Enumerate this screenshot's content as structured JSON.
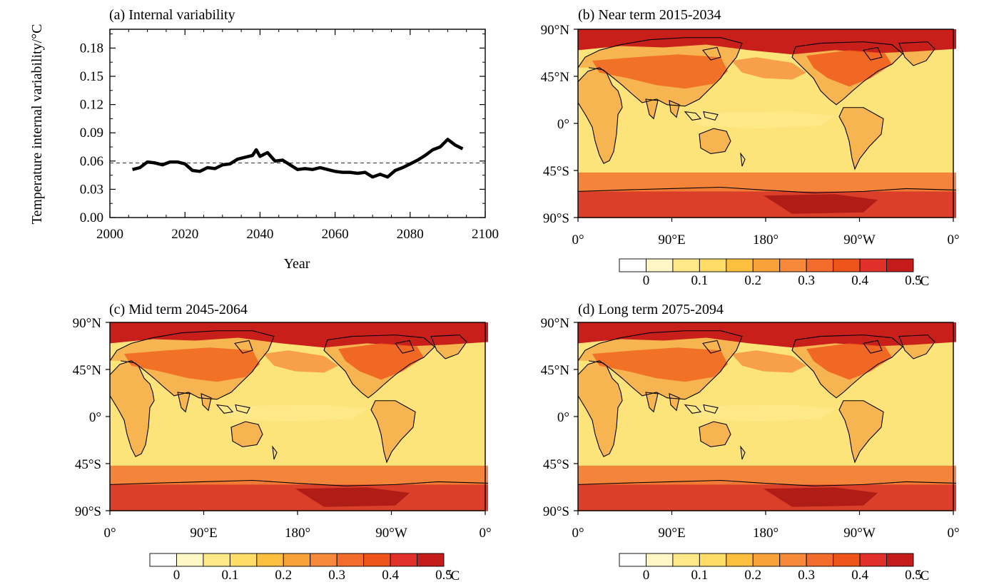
{
  "colors": {
    "ocean_base": "#fde47a",
    "land_base": "#f6c35a",
    "line": "#000000",
    "ref_line": "#333333"
  },
  "colorbar": {
    "colors": [
      "#ffffff",
      "#fff6c6",
      "#ffe888",
      "#ffdd66",
      "#fcc03e",
      "#f9a23a",
      "#f7893a",
      "#f36c2c",
      "#ee5419",
      "#e1302a",
      "#c41c1a"
    ],
    "labels": [
      "0",
      "0.1",
      "0.2",
      "0.3",
      "0.4",
      "0.5"
    ],
    "unit": "°C"
  },
  "map_ticks": {
    "lon": [
      "0°",
      "90°E",
      "180°",
      "90°W",
      "0°"
    ],
    "lat": [
      "90°N",
      "45°N",
      "0°",
      "45°S",
      "90°S"
    ]
  },
  "panels": {
    "a": {
      "title": "(a) Internal variability"
    },
    "b": {
      "title": "(b) Near term 2015-2034"
    },
    "c": {
      "title": "(c) Mid term 2045-2064"
    },
    "d": {
      "title": "(d) Long term 2075-2094"
    }
  },
  "chart_data": [
    {
      "type": "line",
      "panel": "a",
      "title": "(a) Internal variability",
      "xlabel": "Year",
      "ylabel": "Temperature internal variability/°C",
      "xlim": [
        2000,
        2100
      ],
      "ylim": [
        0.0,
        0.2
      ],
      "xticks": [
        "2000",
        "2020",
        "2040",
        "2060",
        "2080",
        "2100"
      ],
      "yticks": [
        "0.00",
        "0.03",
        "0.06",
        "0.09",
        "0.12",
        "0.15",
        "0.18"
      ],
      "reference_line": {
        "y": 0.058,
        "style": "dashed"
      },
      "x": [
        2006,
        2008,
        2010,
        2012,
        2014,
        2016,
        2018,
        2020,
        2022,
        2024,
        2026,
        2028,
        2030,
        2032,
        2034,
        2036,
        2038,
        2039,
        2040,
        2042,
        2044,
        2046,
        2048,
        2050,
        2052,
        2054,
        2056,
        2058,
        2060,
        2062,
        2064,
        2066,
        2068,
        2070,
        2072,
        2074,
        2076,
        2078,
        2080,
        2082,
        2084,
        2086,
        2088,
        2090,
        2092,
        2094
      ],
      "y": [
        0.051,
        0.053,
        0.059,
        0.058,
        0.056,
        0.059,
        0.059,
        0.057,
        0.05,
        0.049,
        0.053,
        0.052,
        0.056,
        0.057,
        0.062,
        0.064,
        0.066,
        0.072,
        0.065,
        0.069,
        0.06,
        0.061,
        0.056,
        0.051,
        0.052,
        0.051,
        0.053,
        0.051,
        0.049,
        0.048,
        0.048,
        0.047,
        0.048,
        0.043,
        0.046,
        0.043,
        0.05,
        0.053,
        0.057,
        0.061,
        0.066,
        0.072,
        0.075,
        0.083,
        0.077,
        0.073
      ]
    },
    {
      "type": "heatmap",
      "panel": "b",
      "title": "(b) Near term 2015-2034",
      "xlim": [
        0,
        360
      ],
      "ylim": [
        -90,
        90
      ],
      "units": "°C",
      "levels": [
        0,
        0.05,
        0.1,
        0.15,
        0.2,
        0.25,
        0.3,
        0.35,
        0.4,
        0.45,
        0.5,
        0.55
      ]
    },
    {
      "type": "heatmap",
      "panel": "c",
      "title": "(c) Mid term 2045-2064",
      "xlim": [
        0,
        360
      ],
      "ylim": [
        -90,
        90
      ],
      "units": "°C",
      "levels": [
        0,
        0.05,
        0.1,
        0.15,
        0.2,
        0.25,
        0.3,
        0.35,
        0.4,
        0.45,
        0.5,
        0.55
      ]
    },
    {
      "type": "heatmap",
      "panel": "d",
      "title": "(d) Long term 2075-2094",
      "xlim": [
        0,
        360
      ],
      "ylim": [
        -90,
        90
      ],
      "units": "°C",
      "levels": [
        0,
        0.05,
        0.1,
        0.15,
        0.2,
        0.25,
        0.3,
        0.35,
        0.4,
        0.45,
        0.5,
        0.55
      ]
    }
  ]
}
